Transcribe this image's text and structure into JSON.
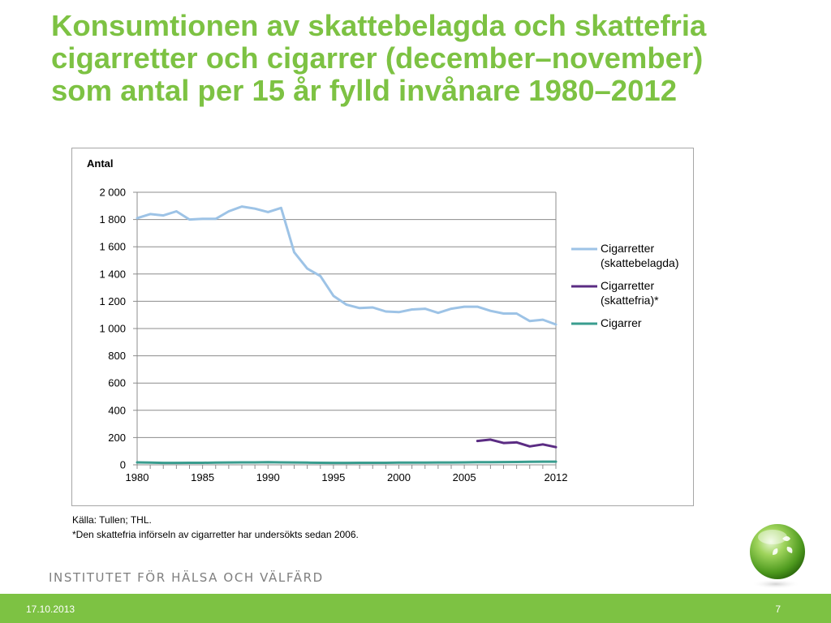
{
  "slide": {
    "title_lines": [
      "Konsumtionen av skattebelagda och skattefria",
      "cigarretter och cigarrer (december–november)",
      "som antal per 15 år fylld invånare 1980–2012"
    ],
    "source_lines": [
      "Källa: Tullen; THL.",
      "*Den skattefria införseln av cigarretter har undersökts sedan 2006."
    ],
    "institute": "INSTITUTET FÖR HÄLSA OCH VÄLFÄRD",
    "date": "17.10.2013",
    "page_number": "7",
    "colors": {
      "accent_green": "#7dc243",
      "institute_gray": "#7f7f7f"
    }
  },
  "chart_data": {
    "type": "line",
    "ylabel": "Antal",
    "ylim": [
      0,
      2000
    ],
    "yticks": [
      0,
      200,
      400,
      600,
      800,
      1000,
      1200,
      1400,
      1600,
      1800,
      2000
    ],
    "ytick_labels": [
      "0",
      "200",
      "400",
      "600",
      "800",
      "1 000",
      "1 200",
      "1 400",
      "1 600",
      "1 800",
      "2 000"
    ],
    "xlim": [
      1980,
      2012
    ],
    "xtick_labels": [
      "1980",
      "1985",
      "1990",
      "1995",
      "2000",
      "2005",
      "2012"
    ],
    "grid": "horizontal",
    "legend_position": "right",
    "series": [
      {
        "name": "Cigarretter (skattebelagda)",
        "legend_lines": [
          "Cigarretter",
          "(skattebelagda)"
        ],
        "color": "#9dc3e6",
        "x": [
          1980,
          1981,
          1982,
          1983,
          1984,
          1985,
          1986,
          1987,
          1988,
          1989,
          1990,
          1991,
          1992,
          1993,
          1994,
          1995,
          1996,
          1997,
          1998,
          1999,
          2000,
          2001,
          2002,
          2003,
          2004,
          2005,
          2006,
          2007,
          2008,
          2009,
          2010,
          2011,
          2012
        ],
        "y": [
          1810,
          1840,
          1830,
          1860,
          1800,
          1805,
          1805,
          1860,
          1895,
          1880,
          1855,
          1885,
          1560,
          1440,
          1385,
          1240,
          1175,
          1150,
          1155,
          1125,
          1120,
          1140,
          1145,
          1115,
          1145,
          1160,
          1160,
          1130,
          1110,
          1110,
          1055,
          1065,
          1030
        ]
      },
      {
        "name": "Cigarretter (skattefria)*",
        "legend_lines": [
          "Cigarretter",
          "(skattefria)*"
        ],
        "color": "#5b2c83",
        "x": [
          2006,
          2007,
          2008,
          2009,
          2010,
          2011,
          2012
        ],
        "y": [
          175,
          185,
          160,
          165,
          135,
          150,
          130
        ]
      },
      {
        "name": "Cigarrer",
        "legend_lines": [
          "Cigarrer"
        ],
        "color": "#3a9d8f",
        "x": [
          1980,
          1981,
          1982,
          1983,
          1984,
          1985,
          1986,
          1987,
          1988,
          1989,
          1990,
          1991,
          1992,
          1993,
          1994,
          1995,
          1996,
          1997,
          1998,
          1999,
          2000,
          2001,
          2002,
          2003,
          2004,
          2005,
          2006,
          2007,
          2008,
          2009,
          2010,
          2011,
          2012
        ],
        "y": [
          18,
          16,
          14,
          14,
          15,
          15,
          16,
          17,
          18,
          18,
          19,
          18,
          17,
          16,
          15,
          14,
          14,
          15,
          15,
          15,
          16,
          16,
          16,
          17,
          17,
          18,
          19,
          19,
          20,
          21,
          22,
          23,
          23
        ]
      }
    ]
  }
}
